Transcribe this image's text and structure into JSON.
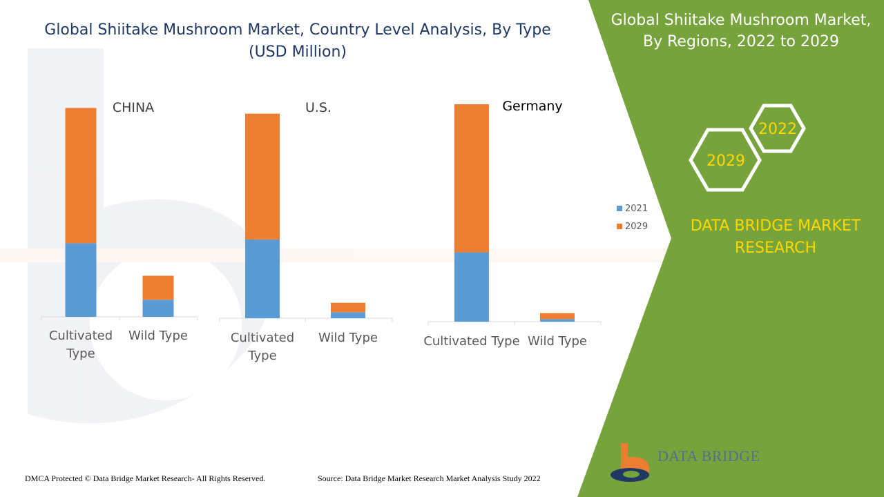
{
  "colors": {
    "series_2021": "#5b9bd5",
    "series_2029": "#ed7d31",
    "panel_green": "#77a33c",
    "brand_yellow": "#ffd700",
    "title_blue": "#1f3864"
  },
  "main_title": {
    "line1": "Global Shiitake Mushroom Market, Country Level Analysis, By Type",
    "line2": "(USD Million)"
  },
  "right_panel": {
    "title_line1": "Global Shiitake Mushroom Market,",
    "title_line2": "By Regions, 2022 to 2029",
    "hex_year_1": "2022",
    "hex_year_2": "2029",
    "brand_line1": "DATA BRIDGE MARKET",
    "brand_line2": "RESEARCH"
  },
  "chart_data": [
    {
      "type": "bar",
      "stacked": true,
      "title": "CHINA",
      "categories": [
        [
          "Cultivated",
          "Type"
        ],
        [
          "Wild Type"
        ]
      ],
      "series": [
        {
          "name": "2021",
          "values": [
            86,
            20
          ]
        },
        {
          "name": "2029",
          "values": [
            158,
            28
          ]
        }
      ],
      "xlabel": "",
      "ylabel": "",
      "ylim": [
        0,
        250
      ]
    },
    {
      "type": "bar",
      "stacked": true,
      "title": "U.S.",
      "categories": [
        [
          "Cultivated",
          "Type"
        ],
        [
          "Wild Type"
        ]
      ],
      "series": [
        {
          "name": "2021",
          "values": [
            92,
            7
          ]
        },
        {
          "name": "2029",
          "values": [
            147,
            11
          ]
        }
      ],
      "xlabel": "",
      "ylabel": "",
      "ylim": [
        0,
        250
      ]
    },
    {
      "type": "bar",
      "stacked": true,
      "title": "Germany",
      "categories": [
        [
          "Cultivated Type"
        ],
        [
          "Wild Type"
        ]
      ],
      "series": [
        {
          "name": "2021",
          "values": [
            81,
            3
          ]
        },
        {
          "name": "2029",
          "values": [
            173,
            7
          ]
        }
      ],
      "xlabel": "",
      "ylabel": "",
      "ylim": [
        0,
        250
      ],
      "legend": {
        "entries": [
          "2021",
          "2029"
        ],
        "position": "right"
      }
    }
  ],
  "footer": {
    "left": "DMCA Protected © Data Bridge Market Research- All Rights Reserved.",
    "right": "Source: Data Bridge Market Research Market Analysis Study 2022"
  },
  "logo": {
    "name": "DATA BRIDGE"
  }
}
